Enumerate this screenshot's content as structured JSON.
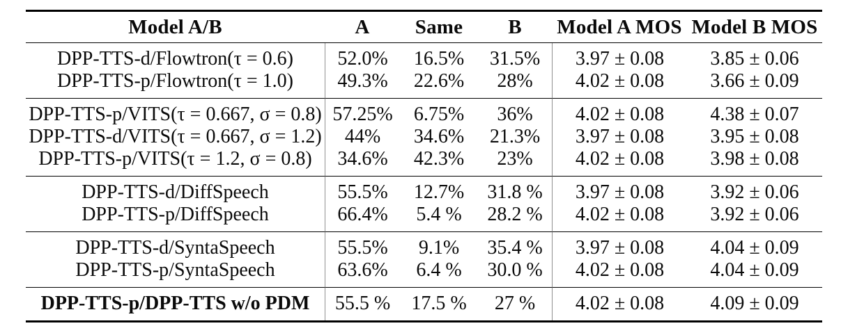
{
  "colors": {
    "background": "#ffffff",
    "text": "#0a0a0a",
    "rule": "#000000",
    "divider": "#8f8f8f"
  },
  "header": {
    "model_ab": "Model A/B",
    "a": "A",
    "same": "Same",
    "b": "B",
    "model_a_mos": "Model A MOS",
    "model_b_mos": "Model B MOS"
  },
  "groups": [
    {
      "rows": [
        {
          "model": "DPP-TTS-d/Flowtron(τ = 0.6)",
          "a": "52.0%",
          "same": "16.5%",
          "b": "31.5%",
          "model_a_mos": "3.97 ± 0.08",
          "model_b_mos": "3.85 ± 0.06"
        },
        {
          "model": "DPP-TTS-p/Flowtron(τ = 1.0)",
          "a": "49.3%",
          "same": "22.6%",
          "b": "28%",
          "model_a_mos": "4.02 ± 0.08",
          "model_b_mos": "3.66 ± 0.09"
        }
      ]
    },
    {
      "rows": [
        {
          "model": "DPP-TTS-p/VITS(τ = 0.667, σ = 0.8)",
          "a": "57.25%",
          "same": "6.75%",
          "b": "36%",
          "model_a_mos": "4.02 ± 0.08",
          "model_b_mos": "4.38 ± 0.07"
        },
        {
          "model": "DPP-TTS-d/VITS(τ = 0.667, σ = 1.2)",
          "a": "44%",
          "same": "34.6%",
          "b": "21.3%",
          "model_a_mos": "3.97 ± 0.08",
          "model_b_mos": "3.95 ± 0.08"
        },
        {
          "model": "DPP-TTS-p/VITS(τ = 1.2, σ = 0.8)",
          "a": "34.6%",
          "same": "42.3%",
          "b": "23%",
          "model_a_mos": "4.02 ± 0.08",
          "model_b_mos": "3.98 ± 0.08"
        }
      ]
    },
    {
      "rows": [
        {
          "model": "DPP-TTS-d/DiffSpeech",
          "a": "55.5%",
          "same": "12.7%",
          "b": "31.8 %",
          "model_a_mos": "3.97 ± 0.08",
          "model_b_mos": "3.92 ± 0.06"
        },
        {
          "model": "DPP-TTS-p/DiffSpeech",
          "a": "66.4%",
          "same": "5.4 %",
          "b": "28.2 %",
          "model_a_mos": "4.02 ± 0.08",
          "model_b_mos": "3.92 ± 0.06"
        }
      ]
    },
    {
      "rows": [
        {
          "model": "DPP-TTS-d/SyntaSpeech",
          "a": "55.5%",
          "same": "9.1%",
          "b": "35.4 %",
          "model_a_mos": "3.97 ± 0.08",
          "model_b_mos": "4.04 ± 0.09"
        },
        {
          "model": "DPP-TTS-p/SyntaSpeech",
          "a": "63.6%",
          "same": "6.4 %",
          "b": "30.0 %",
          "model_a_mos": "4.02 ± 0.08",
          "model_b_mos": "4.04 ± 0.09"
        }
      ]
    },
    {
      "rows": [
        {
          "model": "DPP-TTS-p/DPP-TTS w/o PDM",
          "a": "55.5 %",
          "same": "17.5 %",
          "b": "27 %",
          "model_a_mos": "4.02 ± 0.08",
          "model_b_mos": "4.09 ± 0.09"
        }
      ]
    }
  ]
}
